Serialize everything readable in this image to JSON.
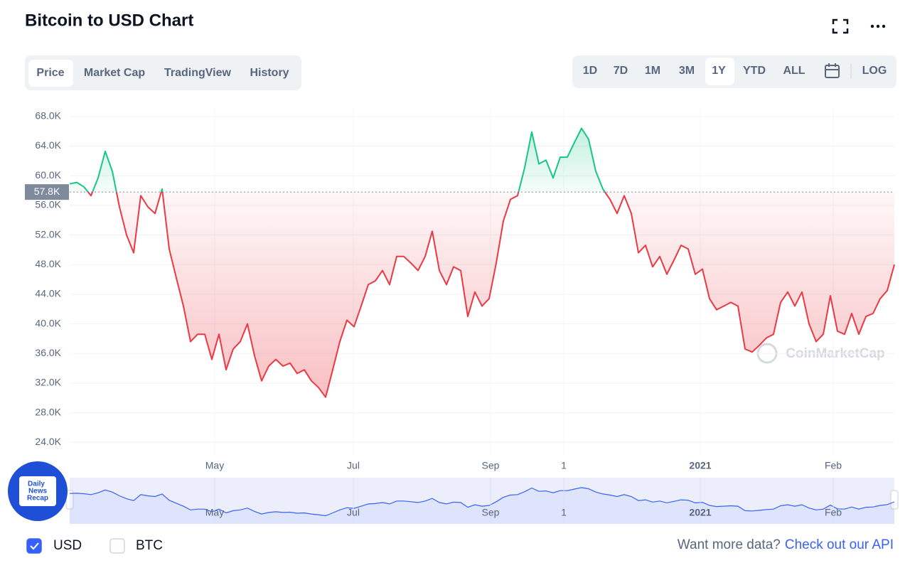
{
  "header": {
    "title": "Bitcoin to USD Chart"
  },
  "tabs": [
    "Price",
    "Market Cap",
    "TradingView",
    "History"
  ],
  "ranges": [
    "1D",
    "7D",
    "1M",
    "3M",
    "1Y",
    "YTD",
    "ALL"
  ],
  "log_button": "LOG",
  "chart_data": {
    "type": "line",
    "x": [
      0,
      1,
      2,
      3,
      4,
      5,
      6,
      7,
      8,
      9,
      10,
      11,
      12,
      13,
      14,
      15,
      16,
      17,
      18,
      19,
      20,
      21,
      22,
      23,
      24,
      25,
      26,
      27,
      28,
      29,
      30,
      31,
      32,
      33,
      34,
      35,
      36,
      37,
      38,
      39,
      40,
      41,
      42,
      43,
      44,
      45,
      46,
      47,
      48,
      49,
      50,
      51,
      52,
      53,
      54,
      55,
      56,
      57,
      58,
      59,
      60,
      61,
      62,
      63,
      64,
      65,
      66,
      67,
      68,
      69,
      70,
      71,
      72,
      73,
      74,
      75,
      76,
      77,
      78,
      79,
      80,
      81,
      82,
      83,
      84,
      85,
      86,
      87,
      88,
      89,
      90,
      91,
      92,
      93,
      94,
      95,
      96,
      97,
      98,
      99,
      100,
      101,
      102,
      103,
      104,
      105,
      106,
      107,
      108,
      109,
      110,
      111,
      112,
      113,
      114,
      115,
      116
    ],
    "values": [
      58900,
      59100,
      58500,
      57300,
      59700,
      63300,
      60600,
      55800,
      52000,
      49600,
      57300,
      55800,
      54900,
      58200,
      50100,
      46200,
      42400,
      37600,
      38600,
      38600,
      35200,
      38600,
      33800,
      36600,
      37600,
      40000,
      35700,
      32300,
      34300,
      35200,
      34300,
      34700,
      33300,
      33800,
      32300,
      31400,
      30100,
      33800,
      37600,
      40500,
      39600,
      42400,
      45300,
      45800,
      47200,
      45300,
      49100,
      49100,
      48200,
      47200,
      49100,
      52500,
      47200,
      45300,
      47700,
      47200,
      41000,
      44300,
      42400,
      43400,
      48200,
      53900,
      56800,
      57300,
      61100,
      65900,
      61600,
      62100,
      59700,
      62500,
      62500,
      64500,
      66400,
      64900,
      60600,
      58200,
      56800,
      54900,
      57300,
      54900,
      49600,
      50600,
      47700,
      49100,
      46700,
      48600,
      50600,
      50100,
      46700,
      47400,
      43400,
      41900,
      42400,
      42900,
      42400,
      36600,
      36200,
      37100,
      38100,
      38600,
      42900,
      44300,
      42400,
      44300,
      40000,
      37600,
      38600,
      43800,
      39000,
      38600,
      41400,
      38600,
      41000,
      41400,
      43400,
      44500,
      48000
    ],
    "xlim": [
      0,
      116
    ],
    "ylim": [
      22300,
      70000
    ],
    "yticks": [
      {
        "value": 24000,
        "label": "24.0K"
      },
      {
        "value": 28000,
        "label": "28.0K"
      },
      {
        "value": 32000,
        "label": "32.0K"
      },
      {
        "value": 36000,
        "label": "36.0K"
      },
      {
        "value": 40000,
        "label": "40.0K"
      },
      {
        "value": 44000,
        "label": "44.0K"
      },
      {
        "value": 48000,
        "label": "48.0K"
      },
      {
        "value": 52000,
        "label": "52.0K"
      },
      {
        "value": 56000,
        "label": "56.0K"
      },
      {
        "value": 60000,
        "label": "60.0K"
      },
      {
        "value": 64000,
        "label": "64.0K"
      },
      {
        "value": 68000,
        "label": "68.0K"
      }
    ],
    "xticks": [
      {
        "value": 20.4,
        "label": "May"
      },
      {
        "value": 39.9,
        "label": "Jul"
      },
      {
        "value": 59.2,
        "label": "Sep"
      },
      {
        "value": 69.5,
        "label": "1"
      },
      {
        "value": 88.7,
        "label": "2021"
      },
      {
        "value": 107.4,
        "label": "Feb"
      }
    ],
    "reference": {
      "value": 57800,
      "label": "57.8K"
    },
    "colors": {
      "up": "#16c784",
      "down": "#ea3943",
      "navigator": "#3861fb"
    },
    "grid": true,
    "watermark": "CoinMarketCap"
  },
  "currencies": [
    {
      "label": "USD",
      "checked": true
    },
    {
      "label": "BTC",
      "checked": false
    }
  ],
  "footer": {
    "prompt": "Want more data?",
    "link": "Check out our API"
  },
  "badge": [
    "Daily",
    "News",
    "Recap"
  ]
}
